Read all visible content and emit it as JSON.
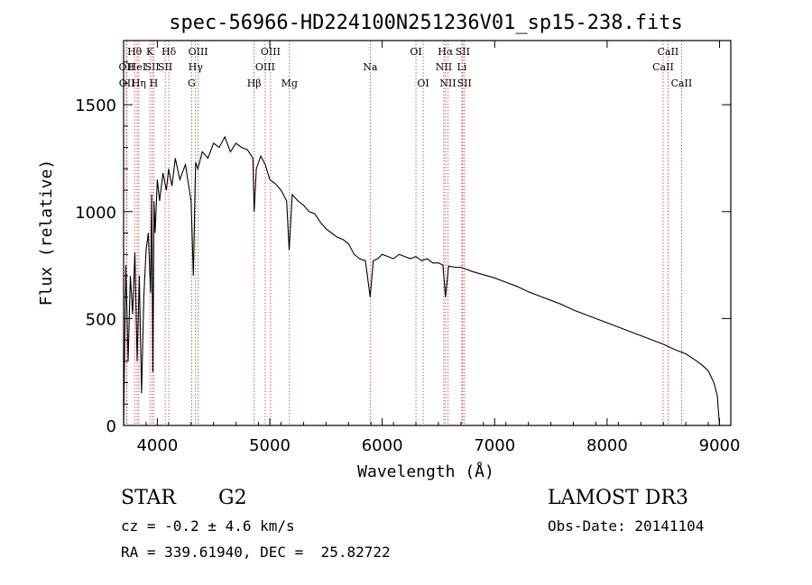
{
  "chart_data": {
    "type": "line",
    "title": "spec-56966-HD224100N251236V01_sp15-238.fits",
    "xlabel": "Wavelength (Å)",
    "ylabel": "Flux (relative)",
    "xlim": [
      3700,
      9100
    ],
    "ylim": [
      0,
      1800
    ],
    "x_ticks": [
      4000,
      5000,
      6000,
      7000,
      8000,
      9000
    ],
    "y_ticks": [
      0,
      500,
      1000,
      1500
    ],
    "grid": false,
    "series": [
      {
        "name": "spectrum",
        "x": [
          3700,
          3720,
          3740,
          3760,
          3780,
          3800,
          3820,
          3840,
          3860,
          3880,
          3900,
          3920,
          3940,
          3950,
          3960,
          3970,
          3980,
          4000,
          4020,
          4050,
          4080,
          4100,
          4130,
          4160,
          4200,
          4250,
          4300,
          4320,
          4340,
          4360,
          4400,
          4450,
          4500,
          4550,
          4600,
          4650,
          4700,
          4750,
          4800,
          4850,
          4861,
          4880,
          4920,
          4960,
          5000,
          5050,
          5100,
          5150,
          5172,
          5200,
          5250,
          5300,
          5350,
          5400,
          5450,
          5500,
          5550,
          5600,
          5650,
          5700,
          5750,
          5800,
          5850,
          5893,
          5920,
          5960,
          6000,
          6050,
          6100,
          6150,
          6200,
          6250,
          6300,
          6350,
          6400,
          6450,
          6500,
          6540,
          6563,
          6590,
          6650,
          6700,
          6800,
          6900,
          7000,
          7100,
          7200,
          7300,
          7400,
          7500,
          7600,
          7700,
          7800,
          7900,
          8000,
          8100,
          8200,
          8300,
          8400,
          8500,
          8600,
          8700,
          8800,
          8850,
          8900,
          8950,
          8980,
          9000
        ],
        "y": [
          0,
          750,
          300,
          700,
          520,
          810,
          300,
          700,
          150,
          600,
          820,
          900,
          620,
          1080,
          250,
          1050,
          900,
          1150,
          1050,
          1180,
          1100,
          1200,
          1120,
          1250,
          1150,
          1220,
          1050,
          700,
          1230,
          1200,
          1280,
          1250,
          1320,
          1300,
          1350,
          1280,
          1320,
          1300,
          1290,
          1250,
          1000,
          1200,
          1260,
          1220,
          1150,
          1130,
          1100,
          1050,
          820,
          1080,
          1050,
          1030,
          1000,
          990,
          950,
          920,
          900,
          880,
          870,
          850,
          800,
          780,
          770,
          600,
          770,
          780,
          800,
          790,
          780,
          800,
          790,
          780,
          790,
          770,
          780,
          760,
          760,
          750,
          600,
          745,
          740,
          740,
          720,
          705,
          690,
          670,
          650,
          625,
          605,
          585,
          565,
          540,
          520,
          500,
          480,
          460,
          440,
          420,
          400,
          380,
          355,
          335,
          300,
          280,
          255,
          200,
          140,
          0
        ]
      }
    ],
    "line_markers": [
      {
        "label": "Hθ",
        "wavelength": 3798,
        "row": 0
      },
      {
        "label": "OII",
        "wavelength": 3727,
        "row": 1
      },
      {
        "label": "OII",
        "wavelength": 3729,
        "row": 2
      },
      {
        "label": "HeI",
        "wavelength": 3820,
        "row": 1
      },
      {
        "label": "Hη",
        "wavelength": 3835,
        "row": 2
      },
      {
        "label": "K",
        "wavelength": 3934,
        "row": 0
      },
      {
        "label": "SII",
        "wavelength": 3954,
        "row": 1
      },
      {
        "label": "H",
        "wavelength": 3968,
        "row": 2
      },
      {
        "label": "Hδ",
        "wavelength": 4102,
        "row": 0
      },
      {
        "label": "SII",
        "wavelength": 4070,
        "row": 1
      },
      {
        "label": "OIII",
        "wavelength": 4363,
        "row": 0
      },
      {
        "label": "Hγ",
        "wavelength": 4340,
        "row": 1
      },
      {
        "label": "G",
        "wavelength": 4305,
        "row": 2
      },
      {
        "label": "OIII",
        "wavelength": 5007,
        "row": 0
      },
      {
        "label": "OIII",
        "wavelength": 4959,
        "row": 1
      },
      {
        "label": "Hβ",
        "wavelength": 4861,
        "row": 2
      },
      {
        "label": "Mg",
        "wavelength": 5175,
        "row": 2
      },
      {
        "label": "Na",
        "wavelength": 5893,
        "row": 1
      },
      {
        "label": "OI",
        "wavelength": 6300,
        "row": 0
      },
      {
        "label": "OI",
        "wavelength": 6364,
        "row": 2
      },
      {
        "label": "Hα",
        "wavelength": 6563,
        "row": 0
      },
      {
        "label": "SII",
        "wavelength": 6716,
        "row": 0
      },
      {
        "label": "NII",
        "wavelength": 6548,
        "row": 1
      },
      {
        "label": "Li",
        "wavelength": 6708,
        "row": 1
      },
      {
        "label": "NII",
        "wavelength": 6584,
        "row": 2
      },
      {
        "label": "SII",
        "wavelength": 6731,
        "row": 2
      },
      {
        "label": "CaII",
        "wavelength": 8542,
        "row": 0
      },
      {
        "label": "CaII",
        "wavelength": 8498,
        "row": 1
      },
      {
        "label": "CaII",
        "wavelength": 8662,
        "row": 2
      }
    ]
  },
  "info": {
    "object_type": "STAR",
    "subclass": "G2",
    "survey": "LAMOST DR3",
    "redshift": "cz = -0.2 ± 4.6 km/s",
    "obs_date": "Obs-Date: 20141104",
    "coords": "RA = 339.61940, DEC =  25.82722"
  }
}
